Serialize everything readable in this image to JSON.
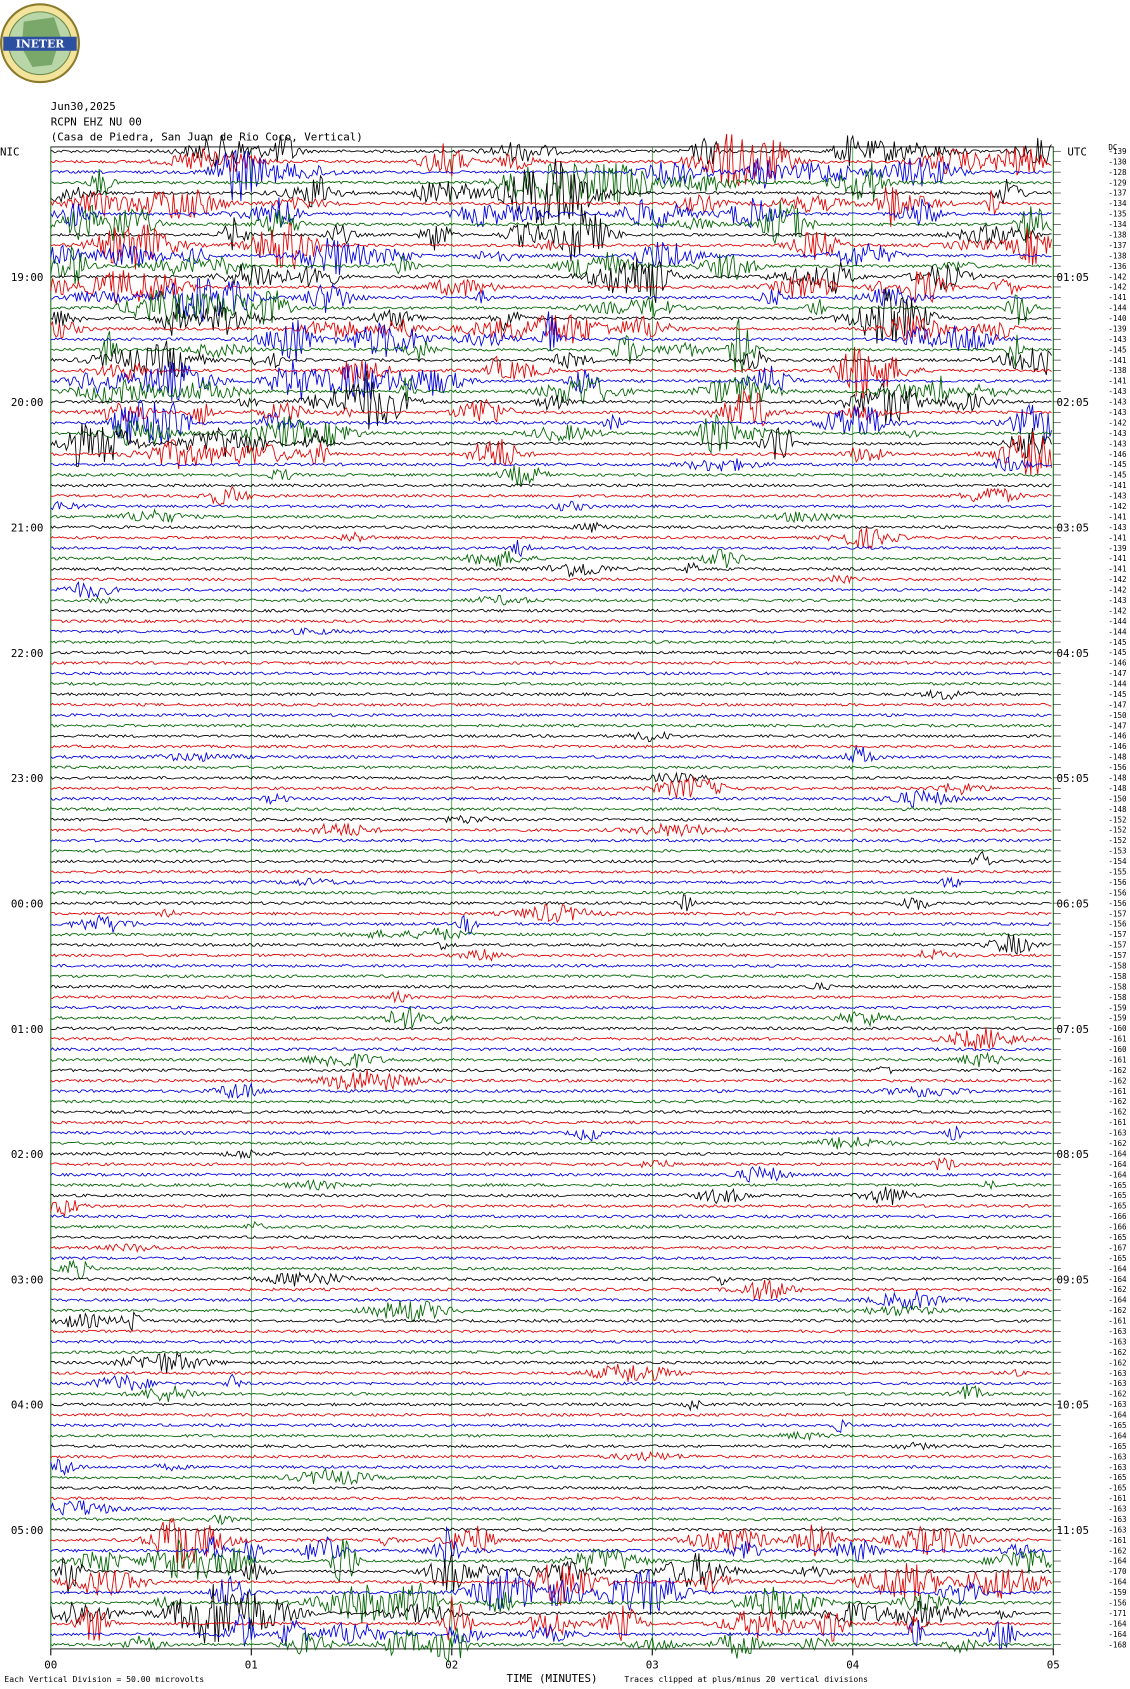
{
  "chart_data": {
    "type": "helicorder",
    "logo": "INETER",
    "date": "Jun30,2025",
    "station": "RCPN EHZ NU 00",
    "location": "(Casa de Piedra, San Juan de Rio Coco, Vertical)",
    "left_zone": "NIC",
    "right_zone": "UTC",
    "offset_header": "DC",
    "left_hours": [
      "19:00",
      "20:00",
      "21:00",
      "22:00",
      "23:00",
      "00:00",
      "01:00",
      "02:00",
      "03:00",
      "04:00",
      "05:00"
    ],
    "right_hours": [
      "01:05",
      "02:05",
      "03:05",
      "04:05",
      "05:05",
      "06:05",
      "07:05",
      "08:05",
      "09:05",
      "10:05",
      "11:05"
    ],
    "trace_offsets": [
      "-139",
      "-130",
      "-128",
      "-129",
      "-137",
      "-134",
      "-135",
      "-134",
      "-138",
      "-137",
      "-138",
      "-136",
      "-142",
      "-142",
      "-141",
      "-144",
      "-140",
      "-139",
      "-143",
      "-145",
      "-141",
      "-138",
      "-141",
      "-143",
      "-143",
      "-143",
      "-142",
      "-143",
      "-143",
      "-146",
      "-145",
      "-145",
      "-141",
      "-143",
      "-142",
      "-141",
      "-143",
      "-141",
      "-139",
      "-141",
      "-141",
      "-142",
      "-142",
      "-143",
      "-142",
      "-144",
      "-144",
      "-145",
      "-145",
      "-146",
      "-147",
      "-144",
      "-145",
      "-147",
      "-150",
      "-147",
      "-146",
      "-146",
      "-148",
      "-156",
      "-148",
      "-148",
      "-150",
      "-148",
      "-152",
      "-152",
      "-152",
      "-153",
      "-154",
      "-155",
      "-156",
      "-156",
      "-156",
      "-157",
      "-156",
      "-157",
      "-157",
      "-157",
      "-158",
      "-158",
      "-158",
      "-158",
      "-159",
      "-159",
      "-160",
      "-161",
      "-160",
      "-161",
      "-162",
      "-162",
      "-161",
      "-162",
      "-162",
      "-161",
      "-163",
      "-162",
      "-164",
      "-164",
      "-164",
      "-165",
      "-165",
      "-165",
      "-166",
      "-166",
      "-165",
      "-167",
      "-165",
      "-164",
      "-164",
      "-162",
      "-164",
      "-162",
      "-161",
      "-163",
      "-163",
      "-162",
      "-162",
      "-163",
      "-163",
      "-162",
      "-163",
      "-164",
      "-165",
      "-164",
      "-165",
      "-163",
      "-163",
      "-165",
      "-165",
      "-161",
      "-163",
      "-163",
      "-163",
      "-161",
      "-162",
      "-164",
      "-170",
      "-164",
      "-159",
      "-156",
      "-171",
      "-164",
      "-164",
      "-168"
    ],
    "trace_colors": [
      "#000000",
      "#e00000",
      "#0000e0",
      "#006400"
    ],
    "xlim": [
      0,
      5
    ],
    "xticks": [
      {
        "value": 0,
        "label": "00"
      },
      {
        "value": 1,
        "label": "01"
      },
      {
        "value": 2,
        "label": "02"
      },
      {
        "value": 3,
        "label": "03"
      },
      {
        "value": 4,
        "label": "04"
      },
      {
        "value": 5,
        "label": "05"
      }
    ],
    "xlabel": "TIME (MINUTES)",
    "scale_note": "Each Vertical Division =    50.00 microvolts",
    "clip_note": "Traces clipped at plus/minus 20 vertical divisions"
  }
}
